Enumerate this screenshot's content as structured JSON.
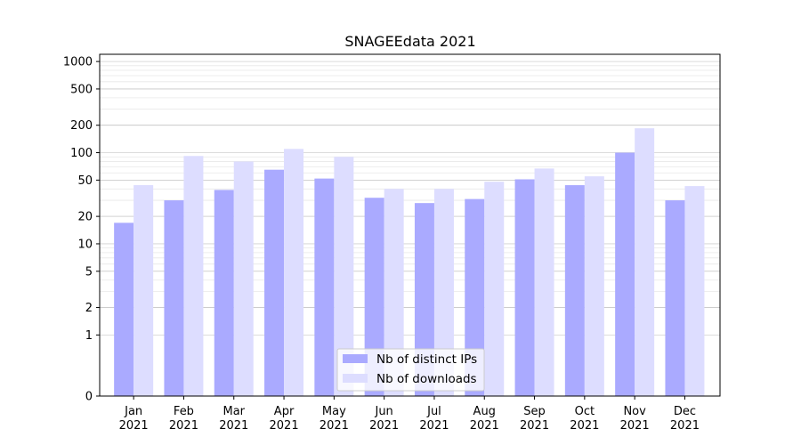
{
  "chart_data": {
    "type": "bar",
    "title": "SNAGEEdata 2021",
    "xlabel": "",
    "ylabel": "",
    "yscale": "symlog",
    "ylim": [
      0,
      1200
    ],
    "categories": [
      "Jan\n2021",
      "Feb\n2021",
      "Mar\n2021",
      "Apr\n2021",
      "May\n2021",
      "Jun\n2021",
      "Jul\n2021",
      "Aug\n2021",
      "Sep\n2021",
      "Oct\n2021",
      "Nov\n2021",
      "Dec\n2021"
    ],
    "y_ticks": [
      0,
      1,
      2,
      5,
      10,
      20,
      50,
      100,
      200,
      500,
      1000
    ],
    "y_tick_labels": [
      "0",
      "1",
      "2",
      "5",
      "10",
      "20",
      "50",
      "100",
      "200",
      "500",
      "1000"
    ],
    "grid": true,
    "legend_position": "bottom-center",
    "series": [
      {
        "name": "Nb of distinct IPs",
        "color": "#aaaaff",
        "values": [
          17,
          30,
          39,
          65,
          52,
          32,
          28,
          31,
          51,
          44,
          100,
          30
        ]
      },
      {
        "name": "Nb of downloads",
        "color": "#ddddff",
        "values": [
          44,
          92,
          80,
          110,
          90,
          40,
          40,
          48,
          67,
          55,
          185,
          43
        ]
      }
    ]
  }
}
